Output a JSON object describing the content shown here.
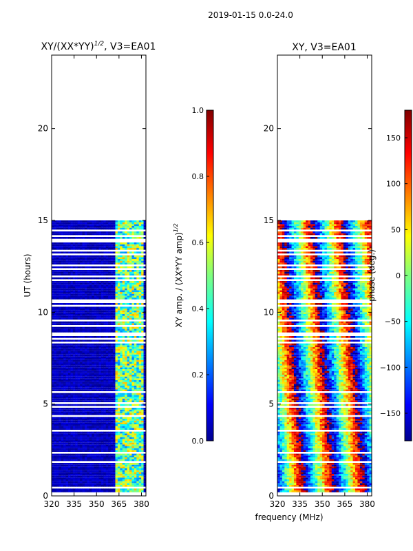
{
  "suptitle": "2019-01-15 0.0-24.0",
  "chart_data": [
    {
      "type": "heatmap",
      "title_main": "XY/(XX*YY)",
      "title_sup": "1/2",
      "title_tail": ", V3=EA01",
      "xlabel": "",
      "ylabel": "UT (hours)",
      "xlim": [
        320,
        383
      ],
      "ylim": [
        0,
        24
      ],
      "xticks": [
        320,
        335,
        350,
        365,
        380
      ],
      "yticks": [
        0,
        5,
        10,
        15,
        20
      ],
      "data_extent_hours": [
        0.1,
        14.9
      ],
      "colorbar": {
        "label_main": "XY amp. / (XX*YY amp)",
        "label_sup": "1/2",
        "range": [
          0.0,
          1.0
        ],
        "ticks": [
          "0.0",
          "0.2",
          "0.4",
          "0.6",
          "0.8",
          "1.0"
        ],
        "tick_values": [
          0.0,
          0.2,
          0.4,
          0.6,
          0.8,
          1.0
        ]
      }
    },
    {
      "type": "heatmap",
      "title_main": "XY, V3=EA01",
      "xlabel": "frequency (MHz)",
      "ylabel": "",
      "xlim": [
        320,
        383
      ],
      "ylim": [
        0,
        24
      ],
      "xticks": [
        320,
        335,
        350,
        365,
        380
      ],
      "yticks": [
        0,
        5,
        10,
        15,
        20
      ],
      "data_extent_hours": [
        0.1,
        14.9
      ],
      "colorbar": {
        "label_main": "phase (deg.)",
        "range": [
          -180,
          180
        ],
        "ticks": [
          "−150",
          "−100",
          "−50",
          "0",
          "50",
          "100",
          "150"
        ],
        "tick_values": [
          -150,
          -100,
          -50,
          0,
          50,
          100,
          150
        ]
      }
    }
  ],
  "colors": {
    "jet_dark_blue": "#00008f",
    "jet_blue": "#0000ff",
    "jet_cyan": "#00ffff",
    "jet_yellow": "#ffff00",
    "jet_red": "#ff0000",
    "jet_dark_red": "#800000"
  }
}
